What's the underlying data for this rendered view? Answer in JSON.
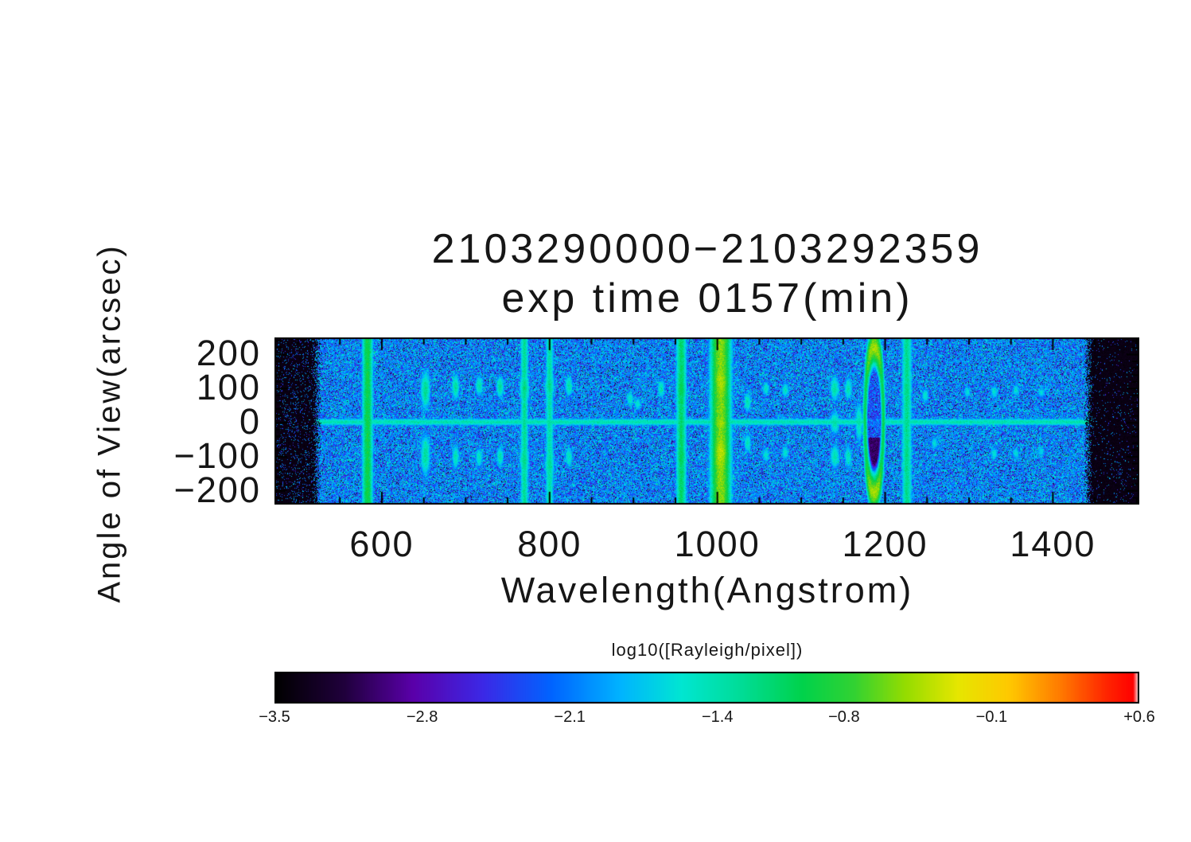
{
  "chart_data": {
    "type": "heatmap",
    "title": "2103290000−2103292359",
    "subtitle": "exp time 0157(min)",
    "xlabel": "Wavelength(Angstrom)",
    "ylabel": "Angle of View(arcsec)",
    "x_range": [
      472,
      1503
    ],
    "y_range": [
      -240,
      250
    ],
    "x_ticks": [
      600,
      800,
      1000,
      1200,
      1400
    ],
    "x_tick_labels": [
      "600",
      "800",
      "1000",
      "1200",
      "1400"
    ],
    "x_minor_step": 50,
    "y_ticks": [
      200,
      100,
      0,
      -100,
      -200
    ],
    "y_tick_labels": [
      "200",
      "100",
      "0",
      "−100",
      "−200"
    ],
    "y_minor_step": 20,
    "grid": false,
    "value_label": "log10([Rayleigh/pixel])",
    "value_range": [
      -3.5,
      0.6
    ],
    "colorbar_ticks": [
      -3.5,
      -2.8,
      -2.1,
      -1.4,
      -0.8,
      -0.1,
      0.6
    ],
    "colorbar_tick_labels": [
      "−3.5",
      "−2.8",
      "−2.1",
      "−1.4",
      "−0.8",
      "−0.1",
      "+0.6"
    ],
    "colormap": [
      [
        0.0,
        "#000000"
      ],
      [
        0.08,
        "#20003c"
      ],
      [
        0.16,
        "#5a00aa"
      ],
      [
        0.24,
        "#3c28e6"
      ],
      [
        0.32,
        "#0064ff"
      ],
      [
        0.4,
        "#00b4ff"
      ],
      [
        0.47,
        "#00e6d2"
      ],
      [
        0.54,
        "#00dc96"
      ],
      [
        0.61,
        "#00d24b"
      ],
      [
        0.67,
        "#32d232"
      ],
      [
        0.73,
        "#96dc00"
      ],
      [
        0.79,
        "#e6e600"
      ],
      [
        0.85,
        "#ffc800"
      ],
      [
        0.91,
        "#ff7800"
      ],
      [
        0.96,
        "#ff2800"
      ],
      [
        0.993,
        "#ff0000"
      ],
      [
        1.0,
        "#ffffff"
      ]
    ],
    "background_noise": {
      "mean": -2.05,
      "sd": 0.42,
      "black_speckle_frac": 0.06,
      "bright_fleck_frac": 0.05
    },
    "dark_margins": {
      "left_max_wavelength": 523,
      "right_min_wavelength": 1442,
      "value": -3.45
    },
    "horizontal_stripe": {
      "angle": 2,
      "sigma": 9,
      "value": -1.4
    },
    "emission_bands": [
      {
        "l": 583,
        "s": 5,
        "v": -0.95
      },
      {
        "l": 770,
        "s": 4,
        "v": -1.3
      },
      {
        "l": 800,
        "s": 4,
        "v": -1.35
      },
      {
        "l": 957,
        "s": 5,
        "v": -1.1
      },
      {
        "l": 1004,
        "s": 9,
        "v": -0.55
      },
      {
        "l": 1226,
        "s": 5,
        "v": -1.25
      }
    ],
    "blobs": [
      {
        "l": 652,
        "a": 95,
        "sl": 5,
        "sa": 50,
        "v": -1.25
      },
      {
        "l": 652,
        "a": -95,
        "sl": 5,
        "sa": 55,
        "v": -1.3
      },
      {
        "l": 688,
        "a": 105,
        "sl": 4,
        "sa": 32,
        "v": -1.3
      },
      {
        "l": 688,
        "a": -100,
        "sl": 4,
        "sa": 32,
        "v": -1.4
      },
      {
        "l": 716,
        "a": 108,
        "sl": 4,
        "sa": 26,
        "v": -1.35
      },
      {
        "l": 716,
        "a": -102,
        "sl": 4,
        "sa": 26,
        "v": -1.45
      },
      {
        "l": 741,
        "a": 105,
        "sl": 4,
        "sa": 28,
        "v": -1.3
      },
      {
        "l": 741,
        "a": -100,
        "sl": 4,
        "sa": 28,
        "v": -1.4
      },
      {
        "l": 770,
        "a": 100,
        "sl": 5,
        "sa": 40,
        "v": -1.2
      },
      {
        "l": 770,
        "a": -110,
        "sl": 5,
        "sa": 40,
        "v": -1.25
      },
      {
        "l": 800,
        "a": 108,
        "sl": 5,
        "sa": 35,
        "v": -1.25
      },
      {
        "l": 800,
        "a": -125,
        "sl": 5,
        "sa": 45,
        "v": -1.3
      },
      {
        "l": 823,
        "a": 108,
        "sl": 4,
        "sa": 28,
        "v": -1.35
      },
      {
        "l": 823,
        "a": -100,
        "sl": 4,
        "sa": 28,
        "v": -1.45
      },
      {
        "l": 896,
        "a": 70,
        "sl": 4,
        "sa": 20,
        "v": -1.5
      },
      {
        "l": 905,
        "a": 55,
        "sl": 4,
        "sa": 18,
        "v": -1.55
      },
      {
        "l": 933,
        "a": 100,
        "sl": 4,
        "sa": 24,
        "v": -1.4
      },
      {
        "l": 957,
        "a": 100,
        "sl": 5,
        "sa": 40,
        "v": -1.0
      },
      {
        "l": 957,
        "a": -100,
        "sl": 5,
        "sa": 40,
        "v": -1.05
      },
      {
        "l": 1004,
        "a": 120,
        "sl": 8,
        "sa": 60,
        "v": -0.45
      },
      {
        "l": 1004,
        "a": -90,
        "sl": 8,
        "sa": 70,
        "v": -0.4
      },
      {
        "l": 1004,
        "a": 0,
        "sl": 8,
        "sa": 25,
        "v": -0.5
      },
      {
        "l": 1036,
        "a": 60,
        "sl": 4,
        "sa": 26,
        "v": -1.4
      },
      {
        "l": 1036,
        "a": -60,
        "sl": 4,
        "sa": 26,
        "v": -1.45
      },
      {
        "l": 1058,
        "a": 100,
        "sl": 4,
        "sa": 20,
        "v": -1.5
      },
      {
        "l": 1058,
        "a": -95,
        "sl": 4,
        "sa": 20,
        "v": -1.55
      },
      {
        "l": 1081,
        "a": 95,
        "sl": 4,
        "sa": 20,
        "v": -1.5
      },
      {
        "l": 1081,
        "a": -88,
        "sl": 4,
        "sa": 20,
        "v": -1.55
      },
      {
        "l": 1140,
        "a": 100,
        "sl": 5,
        "sa": 32,
        "v": -1.35
      },
      {
        "l": 1140,
        "a": 0,
        "sl": 5,
        "sa": 30,
        "v": -1.35
      },
      {
        "l": 1140,
        "a": -100,
        "sl": 5,
        "sa": 32,
        "v": -1.4
      },
      {
        "l": 1156,
        "a": 100,
        "sl": 4,
        "sa": 30,
        "v": -1.4
      },
      {
        "l": 1156,
        "a": -100,
        "sl": 4,
        "sa": 30,
        "v": -1.45
      },
      {
        "l": 1169,
        "a": 0,
        "sl": 4,
        "sa": 55,
        "v": -1.4
      },
      {
        "l": 1226,
        "a": 100,
        "sl": 5,
        "sa": 32,
        "v": -1.2
      },
      {
        "l": 1226,
        "a": -100,
        "sl": 5,
        "sa": 32,
        "v": -1.25
      },
      {
        "l": 1248,
        "a": 80,
        "sl": 4,
        "sa": 20,
        "v": -1.55
      },
      {
        "l": 1259,
        "a": -60,
        "sl": 4,
        "sa": 18,
        "v": -1.6
      },
      {
        "l": 1298,
        "a": 90,
        "sl": 4,
        "sa": 16,
        "v": -1.6
      },
      {
        "l": 1330,
        "a": 90,
        "sl": 4,
        "sa": 18,
        "v": -1.55
      },
      {
        "l": 1330,
        "a": -90,
        "sl": 4,
        "sa": 18,
        "v": -1.6
      },
      {
        "l": 1356,
        "a": 95,
        "sl": 4,
        "sa": 16,
        "v": -1.6
      },
      {
        "l": 1356,
        "a": -90,
        "sl": 4,
        "sa": 16,
        "v": -1.62
      },
      {
        "l": 1386,
        "a": 88,
        "sl": 4,
        "sa": 15,
        "v": -1.62
      },
      {
        "l": 1386,
        "a": -85,
        "sl": 4,
        "sa": 15,
        "v": -1.65
      }
    ],
    "ring": {
      "l": 1187,
      "a": 8,
      "rl": 11,
      "ra": 210,
      "width": 0.2,
      "value_side": -1.0,
      "value_cap": -0.45,
      "interior_value": -2.6,
      "dark_patch": {
        "a": -100,
        "sa": 55,
        "value": -3.2
      }
    }
  }
}
